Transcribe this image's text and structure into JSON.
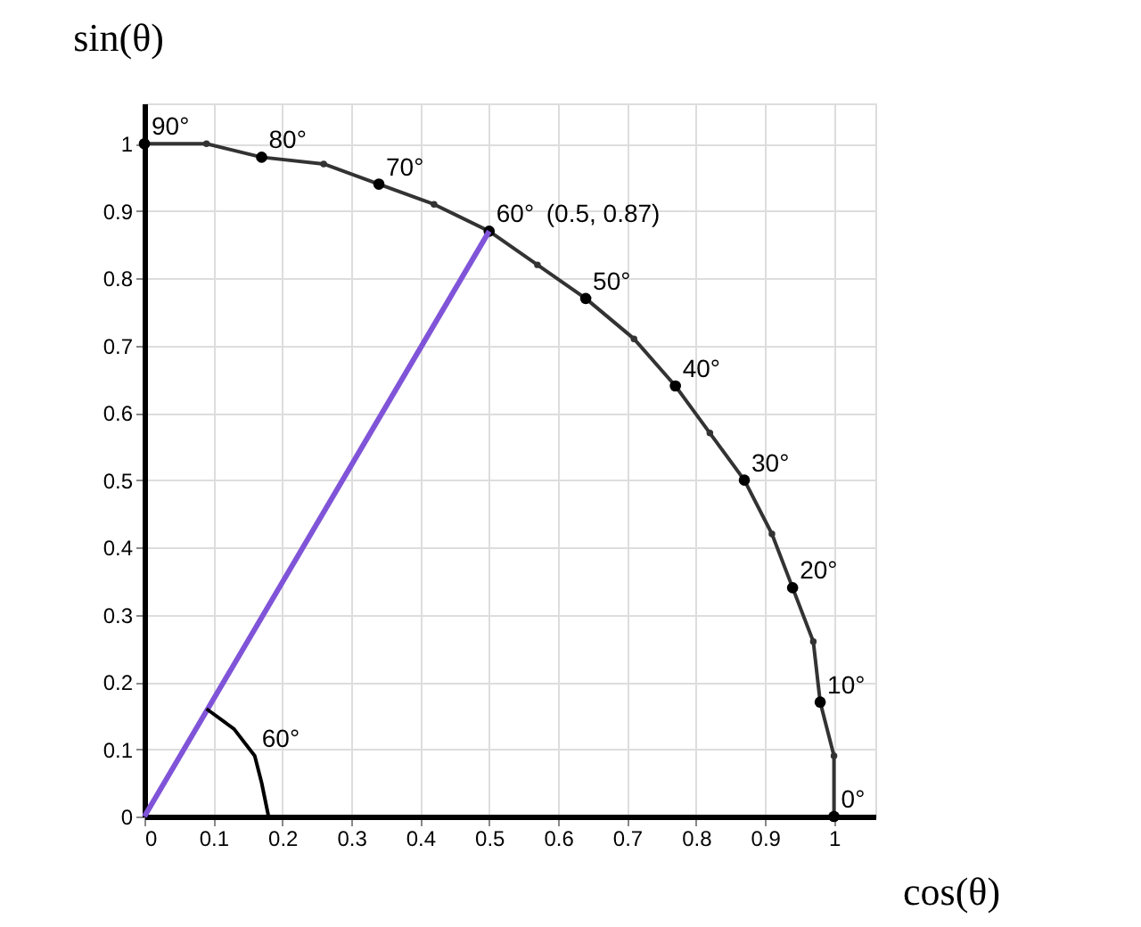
{
  "chart_data": {
    "type": "line",
    "xlabel": "cos(θ)",
    "ylabel": "sin(θ)",
    "xlim": [
      0,
      1.06
    ],
    "ylim": [
      0,
      1.06
    ],
    "xticks": [
      0,
      0.1,
      0.2,
      0.3,
      0.4,
      0.5,
      0.6,
      0.7,
      0.8,
      0.9,
      1
    ],
    "yticks": [
      0,
      0.1,
      0.2,
      0.3,
      0.4,
      0.5,
      0.6,
      0.7,
      0.8,
      0.9,
      1
    ],
    "grid": true,
    "series": [
      {
        "marker": "circle",
        "color": "#333333",
        "x": [
          1,
          1.0,
          0.98,
          0.97,
          0.94,
          0.91,
          0.87,
          0.82,
          0.77,
          0.71,
          0.64,
          0.57,
          0.5,
          0.42,
          0.34,
          0.26,
          0.17,
          0.09,
          0
        ],
        "values": [
          0,
          0.09,
          0.17,
          0.26,
          0.34,
          0.42,
          0.5,
          0.57,
          0.64,
          0.71,
          0.77,
          0.82,
          0.87,
          0.91,
          0.94,
          0.97,
          0.98,
          1.0,
          1
        ]
      },
      {
        "type": "scatter",
        "marker": "circle",
        "color": "#000000",
        "x": [
          1,
          0.98,
          0.94,
          0.87,
          0.77,
          0.64,
          0.5,
          0.34,
          0.17,
          0
        ],
        "values": [
          0,
          0.17,
          0.34,
          0.5,
          0.64,
          0.77,
          0.87,
          0.94,
          0.98,
          1
        ]
      },
      {
        "color": "#8054d8",
        "x": [
          0,
          0.5
        ],
        "values": [
          0,
          0.87
        ]
      },
      {
        "color": "#000000",
        "x": [
          0.18,
          0.17,
          0.16,
          0.13,
          0.09
        ],
        "values": [
          0,
          0.05,
          0.09,
          0.13,
          0.16
        ]
      }
    ],
    "annotations": [
      {
        "text": "0°",
        "x": 1,
        "y": 0
      },
      {
        "text": "10°",
        "x": 0.98,
        "y": 0.17
      },
      {
        "text": "20°",
        "x": 0.94,
        "y": 0.34
      },
      {
        "text": "30°",
        "x": 0.87,
        "y": 0.5
      },
      {
        "text": "40°",
        "x": 0.77,
        "y": 0.64
      },
      {
        "text": "50°",
        "x": 0.64,
        "y": 0.77
      },
      {
        "text": "60°",
        "x": 0.5,
        "y": 0.87
      },
      {
        "text": "(0.5, 0.87)",
        "x": 0.5,
        "y": 0.87
      },
      {
        "text": "70°",
        "x": 0.34,
        "y": 0.94
      },
      {
        "text": "80°",
        "x": 0.17,
        "y": 0.98
      },
      {
        "text": "90°",
        "x": 0,
        "y": 1
      },
      {
        "text": "60°",
        "x": 0.16,
        "y": 0.09
      }
    ]
  }
}
